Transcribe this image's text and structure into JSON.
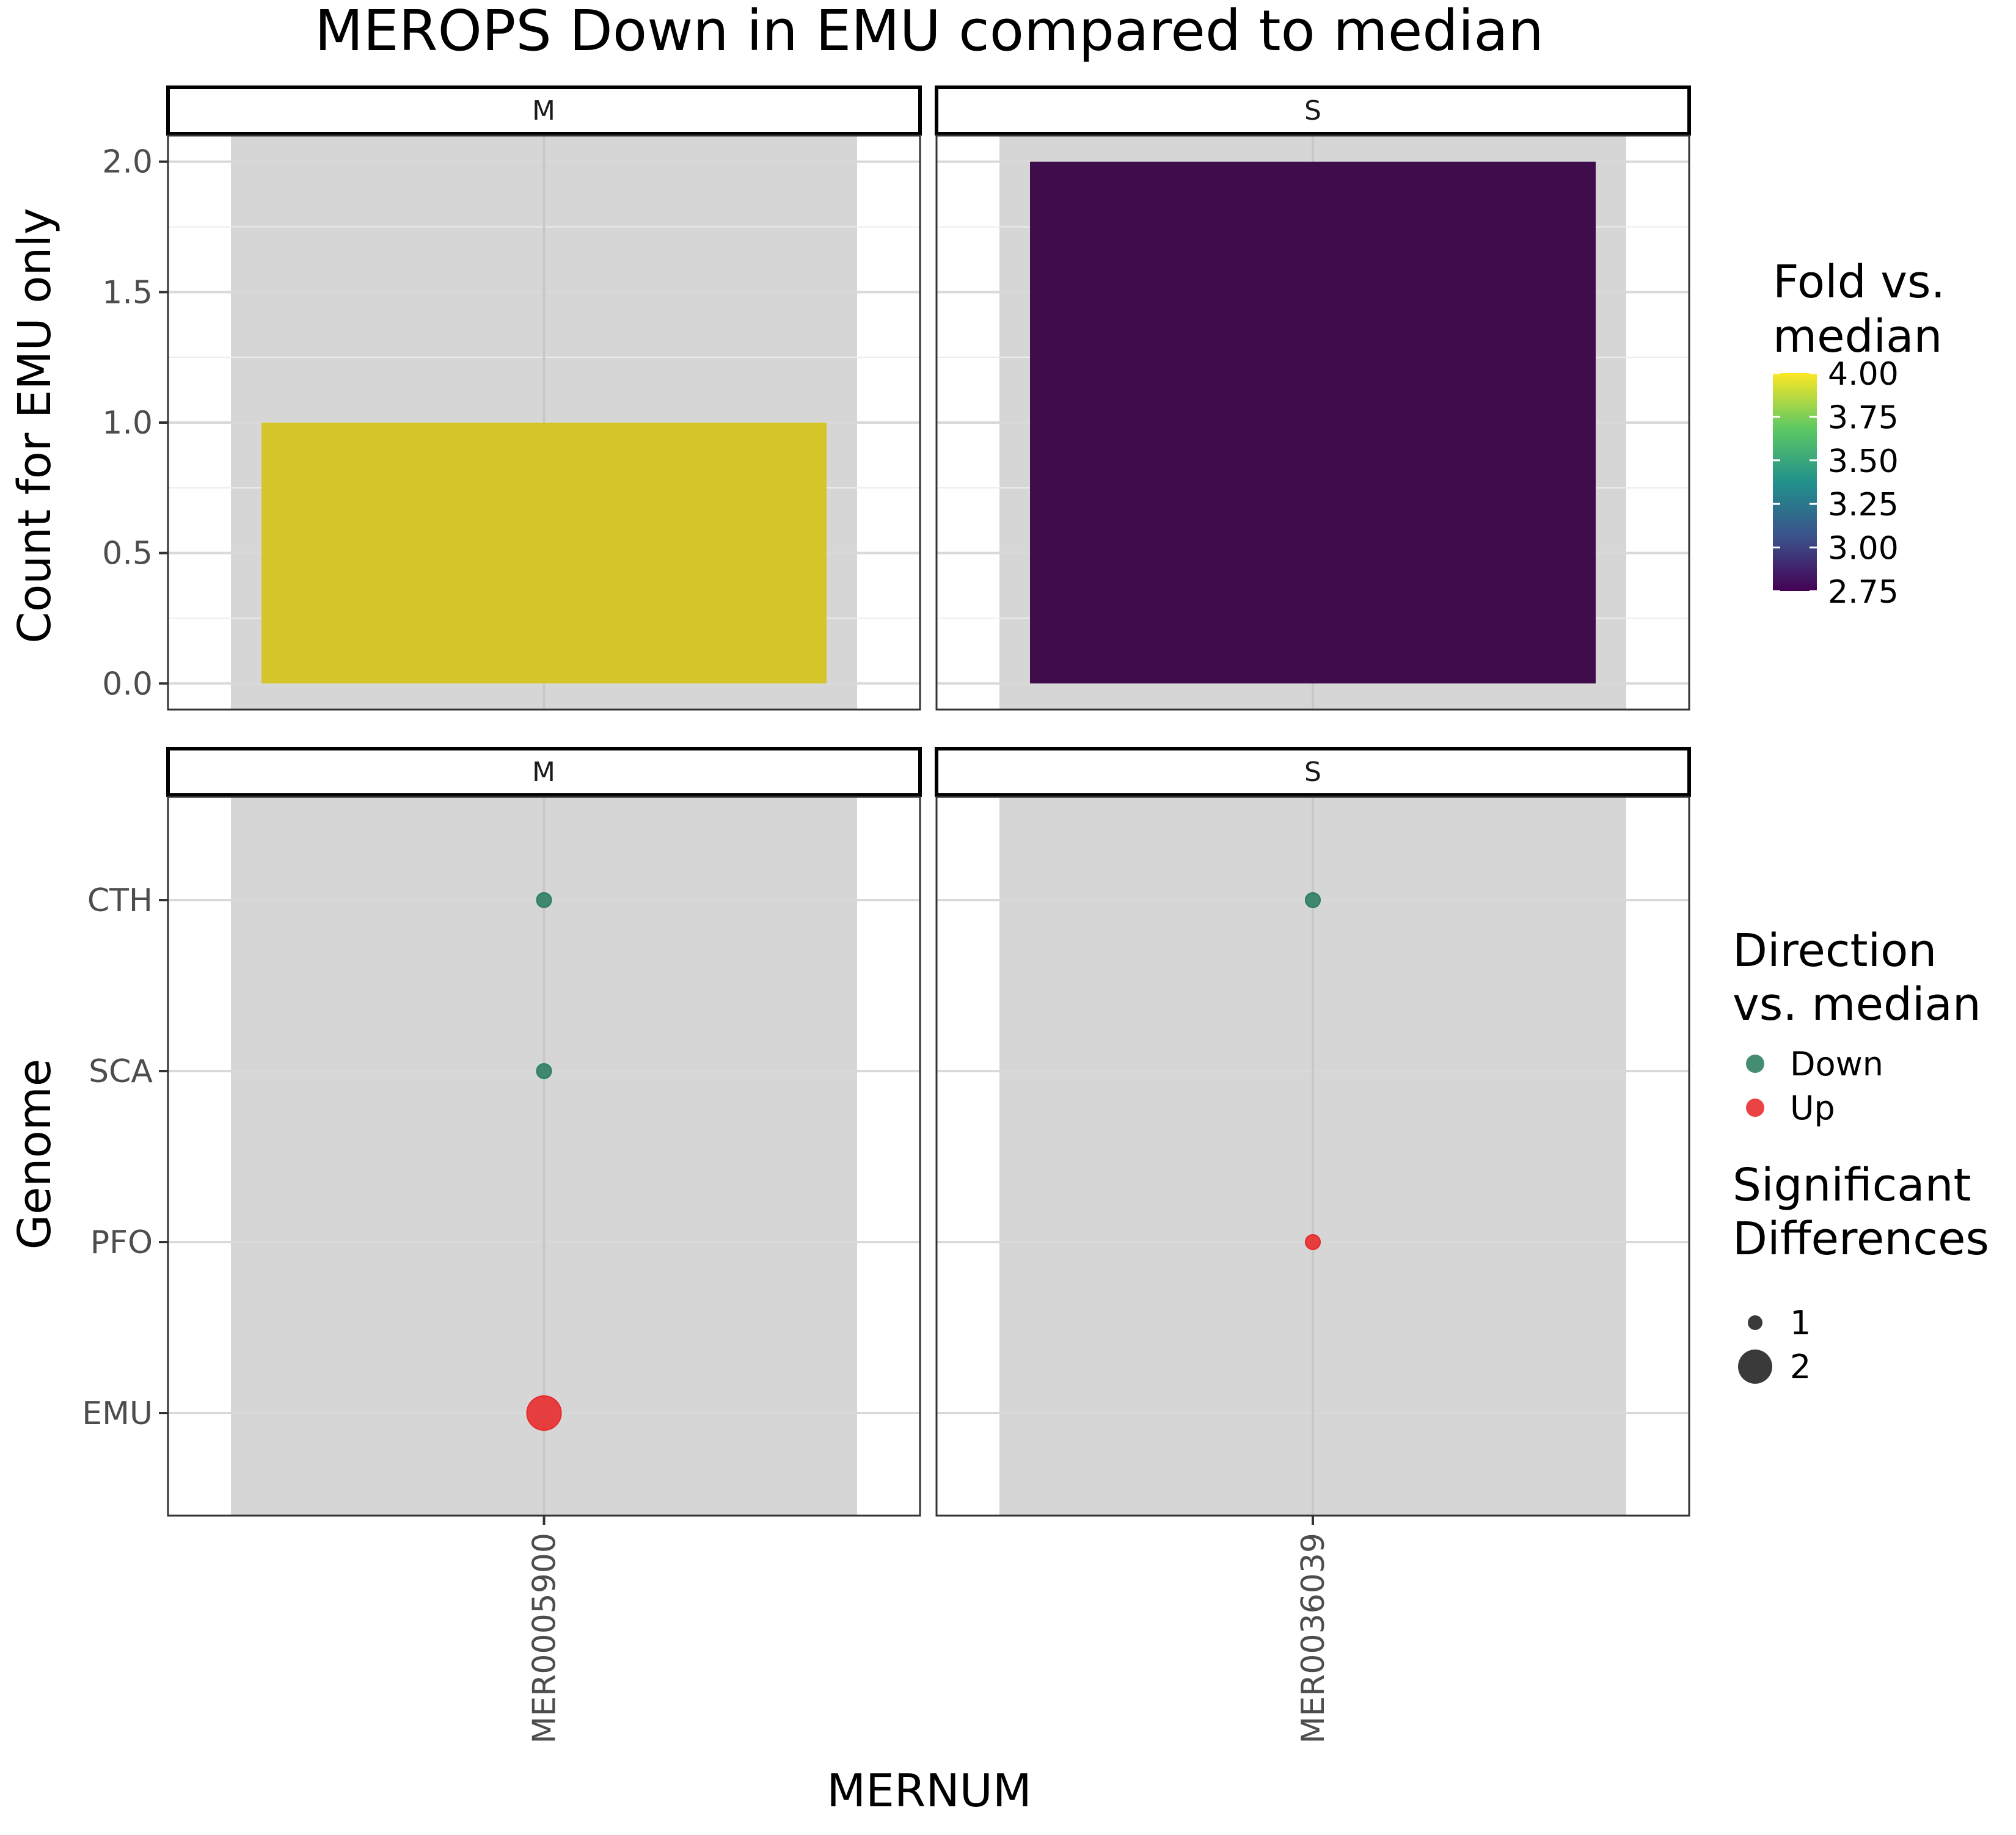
{
  "chart_data": [
    {
      "type": "bar",
      "title": "MEROPS Down in EMU compared to median",
      "ylabel": "Count for EMU only",
      "ylim": [
        -0.1,
        2.1
      ],
      "yticks": [
        "0.0",
        "0.5",
        "1.0",
        "1.5",
        "2.0"
      ],
      "grid": true,
      "facets": [
        {
          "label": "M",
          "category": "MER0005900",
          "value": 1,
          "fold": 4.0,
          "color": "#d4c62a"
        },
        {
          "label": "S",
          "category": "MER0036039",
          "value": 2,
          "fold": 2.75,
          "color": "#400d4c"
        }
      ],
      "legend": {
        "title_lines": [
          "Fold vs.",
          "median"
        ],
        "placement": "right",
        "range": [
          2.75,
          4.0
        ],
        "ticks": [
          "4.00",
          "3.75",
          "3.50",
          "3.25",
          "3.00",
          "2.75"
        ],
        "tick_values": [
          4.0,
          3.75,
          3.5,
          3.25,
          3.0,
          2.75
        ]
      }
    },
    {
      "type": "scatter",
      "ylabel": "Genome",
      "xlabel": "MERNUM",
      "categories_y": [
        "CTH",
        "SCA",
        "PFO",
        "EMU"
      ],
      "grid": true,
      "facets": [
        {
          "label": "M",
          "category": "MER0005900",
          "points": [
            {
              "genome": "CTH",
              "direction": "Down",
              "significant": 1
            },
            {
              "genome": "SCA",
              "direction": "Down",
              "significant": 1
            },
            {
              "genome": "EMU",
              "direction": "Up",
              "significant": 2
            }
          ]
        },
        {
          "label": "S",
          "category": "MER0036039",
          "points": [
            {
              "genome": "CTH",
              "direction": "Down",
              "significant": 1
            },
            {
              "genome": "PFO",
              "direction": "Up",
              "significant": 1
            }
          ]
        }
      ],
      "direction_legend": {
        "title_lines": [
          "Direction",
          "vs. median"
        ],
        "placement": "right",
        "entries": [
          {
            "label": "Down",
            "color": "#2a7d60"
          },
          {
            "label": "Up",
            "color": "#e8282a"
          }
        ]
      },
      "size_legend": {
        "title_lines": [
          "Significant",
          "Differences"
        ],
        "placement": "right",
        "entries": [
          {
            "label": "1",
            "value": 1
          },
          {
            "label": "2",
            "value": 2
          }
        ]
      }
    }
  ],
  "colors": {
    "panel_band": "#d6d6d6",
    "gridline": "#e4e4e4",
    "strip_border": "#000000",
    "axis_text": "#4d4d4d",
    "viridis": [
      "#440154",
      "#3b528b",
      "#21918c",
      "#5ec962",
      "#fde725"
    ]
  }
}
